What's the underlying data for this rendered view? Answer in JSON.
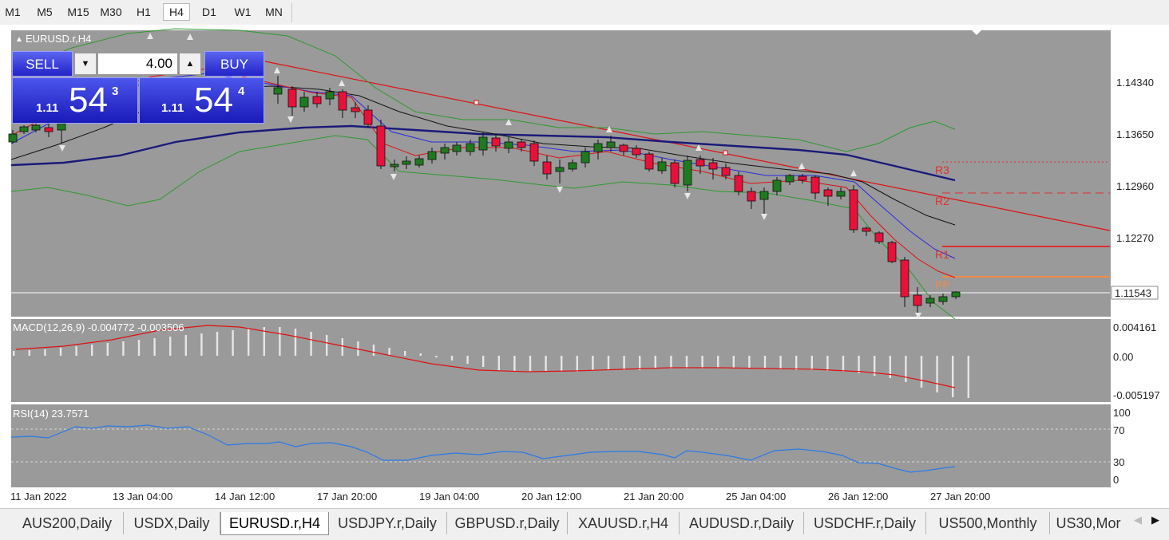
{
  "timeframes": [
    "M1",
    "M5",
    "M15",
    "M30",
    "H1",
    "H4",
    "D1",
    "W1",
    "MN"
  ],
  "active_timeframe": "H4",
  "chart": {
    "symbol_label": "EURUSD.r,H4",
    "price_labels": [
      "1.14340",
      "1.13650",
      "1.12960",
      "1.12270"
    ],
    "current_price": "1.11543",
    "pivot_labels": {
      "r3": "R3",
      "r2": "R2",
      "r1": "R1",
      "pp": "PP"
    },
    "macd_label": "MACD(12,26,9) -0.004772 -0.003506",
    "macd_labels": [
      "0.004161",
      "0.00",
      "-0.005197"
    ],
    "rsi_label": "RSI(14) 23.7571",
    "rsi_labels": [
      "100",
      "70",
      "30",
      "0"
    ],
    "time_labels": [
      "11 Jan 2022",
      "13 Jan 04:00",
      "14 Jan 12:00",
      "17 Jan 20:00",
      "19 Jan 04:00",
      "20 Jan 12:00",
      "21 Jan 20:00",
      "25 Jan 04:00",
      "26 Jan 12:00",
      "27 Jan 20:00"
    ]
  },
  "trade_panel": {
    "sell_label": "SELL",
    "buy_label": "BUY",
    "lot_value": "4.00",
    "sell_price_prefix": "1.11",
    "sell_price_big": "54",
    "sell_price_sup": "3",
    "buy_price_prefix": "1.11",
    "buy_price_big": "54",
    "buy_price_sup": "4"
  },
  "tabs": [
    "AUS200,Daily",
    "USDX,Daily",
    "EURUSD.r,H4",
    "USDJPY.r,Daily",
    "GBPUSD.r,Daily",
    "XAUUSD.r,H4",
    "AUDUSD.r,Daily",
    "USDCHF.r,Daily",
    "US500,Monthly",
    "US30,Mor"
  ],
  "active_tab": "EURUSD.r,H4",
  "colors": {
    "panel_bg": "#9a9a9a",
    "bull": "#1f7a1f",
    "bear": "#e8113a",
    "ma_dark": "#1a1a7a",
    "trade_blue": "#2a2ad8"
  }
}
